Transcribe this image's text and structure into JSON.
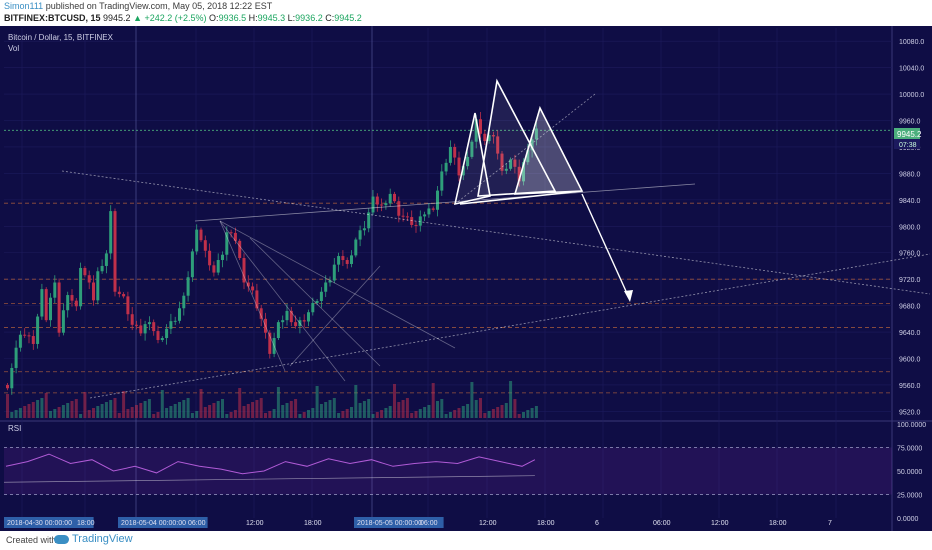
{
  "header": {
    "user": "Simon111",
    "published": "published on TradingView.com, May 05, 2018 12:22 EST",
    "symbol_line": "BITFINEX:BTCUSD, 15",
    "last": "9945.2",
    "change": "▲ +242.2 (+2.5%)",
    "o_label": "O:",
    "o": "9936.5",
    "h_label": "H:",
    "h": "9945.3",
    "l_label": "L:",
    "l": "9936.2",
    "c_label": "C:",
    "c": "9945.2"
  },
  "pane_title": "Bitcoin / Dollar, 15, BITFINEX",
  "vol_label": "Vol",
  "rsi_label": "RSI",
  "price_tag": "9945.2",
  "time_tag": "07:38",
  "footer": {
    "created": "Created with",
    "brand": "TradingView"
  },
  "colors": {
    "bg": "#0f0d45",
    "up": "#2e9e7a",
    "down": "#c0304a",
    "rsi": "#7b2fa8",
    "accent": "#3a8fc4"
  },
  "chart_data": {
    "type": "candlestick",
    "title": "Bitcoin / Dollar, 15, BITFINEX",
    "price_axis": {
      "ticks": [
        10080,
        10040,
        10000,
        9960,
        9920,
        9880,
        9840,
        9800,
        9760,
        9720,
        9680,
        9640,
        9600,
        9560,
        9520
      ],
      "range": [
        9510,
        10100
      ]
    },
    "rsi_axis": {
      "ticks": [
        "100.0000",
        "75.0000",
        "50.0000",
        "25.0000",
        "0.0000"
      ],
      "range": [
        0,
        100
      ]
    },
    "time_axis": {
      "ticks": [
        "2018-04-30 00:00:00",
        "18:00",
        "2018-05-04 00:00:00",
        "06:00",
        "12:00",
        "18:00",
        "2018-05-05 00:00:00",
        "06:00",
        "12:00",
        "18:00",
        "6",
        "06:00",
        "12:00",
        "18:00",
        "7"
      ]
    },
    "last_price": 9945.2,
    "close_path": [
      [
        0,
        9560
      ],
      [
        3,
        9640
      ],
      [
        6,
        9625
      ],
      [
        8,
        9700
      ],
      [
        9,
        9660
      ],
      [
        11,
        9720
      ],
      [
        12,
        9640
      ],
      [
        14,
        9700
      ],
      [
        16,
        9675
      ],
      [
        17,
        9740
      ],
      [
        19,
        9710
      ],
      [
        20,
        9690
      ],
      [
        21,
        9730
      ],
      [
        23,
        9760
      ],
      [
        24,
        9820
      ],
      [
        25,
        9705
      ],
      [
        27,
        9690
      ],
      [
        29,
        9650
      ],
      [
        31,
        9640
      ],
      [
        33,
        9660
      ],
      [
        35,
        9625
      ],
      [
        37,
        9645
      ],
      [
        39,
        9660
      ],
      [
        41,
        9690
      ],
      [
        43,
        9760
      ],
      [
        44,
        9800
      ],
      [
        46,
        9760
      ],
      [
        48,
        9730
      ],
      [
        50,
        9760
      ],
      [
        51,
        9790
      ],
      [
        53,
        9780
      ],
      [
        55,
        9720
      ],
      [
        57,
        9700
      ],
      [
        59,
        9660
      ],
      [
        61,
        9610
      ],
      [
        63,
        9650
      ],
      [
        65,
        9670
      ],
      [
        67,
        9650
      ],
      [
        69,
        9660
      ],
      [
        71,
        9680
      ],
      [
        73,
        9700
      ],
      [
        75,
        9720
      ],
      [
        77,
        9760
      ],
      [
        79,
        9740
      ],
      [
        81,
        9780
      ],
      [
        83,
        9800
      ],
      [
        85,
        9840
      ],
      [
        87,
        9830
      ],
      [
        89,
        9850
      ],
      [
        91,
        9820
      ],
      [
        93,
        9810
      ],
      [
        95,
        9800
      ],
      [
        97,
        9820
      ],
      [
        99,
        9830
      ],
      [
        101,
        9880
      ],
      [
        103,
        9920
      ],
      [
        105,
        9880
      ],
      [
        107,
        9900
      ],
      [
        109,
        9960
      ],
      [
        111,
        9930
      ],
      [
        113,
        9940
      ],
      [
        115,
        9880
      ],
      [
        117,
        9900
      ],
      [
        119,
        9870
      ],
      [
        121,
        9920
      ],
      [
        123,
        9945
      ]
    ],
    "rsi_path": [
      [
        0,
        55
      ],
      [
        5,
        60
      ],
      [
        10,
        68
      ],
      [
        15,
        58
      ],
      [
        20,
        62
      ],
      [
        25,
        50
      ],
      [
        30,
        55
      ],
      [
        35,
        48
      ],
      [
        40,
        60
      ],
      [
        45,
        55
      ],
      [
        50,
        52
      ],
      [
        55,
        47
      ],
      [
        60,
        50
      ],
      [
        65,
        60
      ],
      [
        70,
        55
      ],
      [
        75,
        63
      ],
      [
        80,
        58
      ],
      [
        85,
        62
      ],
      [
        90,
        55
      ],
      [
        95,
        58
      ],
      [
        100,
        60
      ],
      [
        105,
        58
      ],
      [
        110,
        65
      ],
      [
        115,
        60
      ],
      [
        120,
        55
      ],
      [
        123,
        62
      ]
    ],
    "support_levels": [
      9835,
      9720,
      9683,
      9647,
      9580,
      9548
    ]
  }
}
